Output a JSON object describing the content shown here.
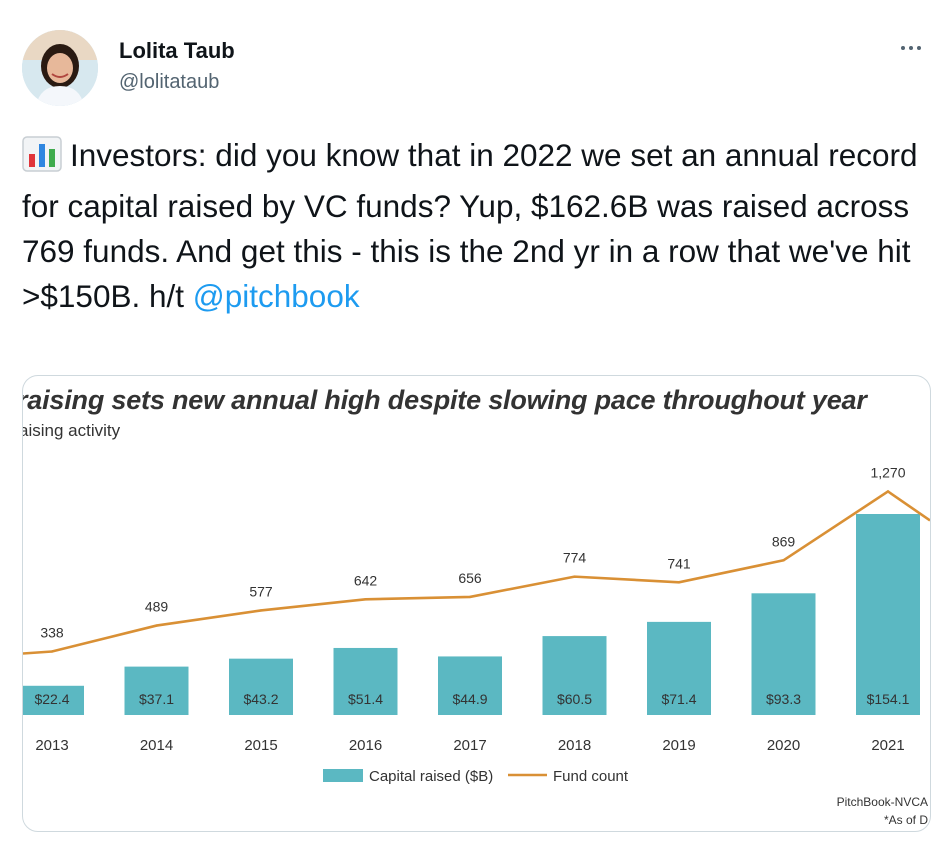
{
  "tweet": {
    "author_name": "Lolita Taub",
    "author_handle": "@lolitataub",
    "text_before_mention": "Investors: did you know that in 2022 we set an annual record for capital raised by VC funds? Yup, $162.6B was raised across 769 funds. And get this - this is the 2nd yr in a row that we've hit >$150B. h/t ",
    "mention": "@pitchbook",
    "emoji_icon": "bar-chart-icon",
    "more_icon": "more-horizontal-icon"
  },
  "chart_data": {
    "type": "bar",
    "title": "raising sets new annual high despite slowing pace throughout year",
    "subtitle": "aising activity",
    "categories": [
      "2013",
      "2014",
      "2015",
      "2016",
      "2017",
      "2018",
      "2019",
      "2020",
      "2021"
    ],
    "series": [
      {
        "name": "Capital raised ($B)",
        "type": "bar",
        "values": [
          22.4,
          37.1,
          43.2,
          51.4,
          44.9,
          60.5,
          71.4,
          93.3,
          154.1
        ],
        "labels": [
          "$22.4",
          "$37.1",
          "$43.2",
          "$51.4",
          "$44.9",
          "$60.5",
          "$71.4",
          "$93.3",
          "$154.1"
        ]
      },
      {
        "name": "Fund count",
        "type": "line",
        "values": [
          338,
          489,
          577,
          642,
          656,
          774,
          741,
          869,
          1270
        ],
        "labels": [
          "338",
          "489",
          "577",
          "642",
          "656",
          "774",
          "741",
          "869",
          "1,270"
        ]
      }
    ],
    "legend_position": "bottom",
    "source": "PitchBook-NVCA",
    "footnote": "*As of D",
    "colors": {
      "bar": "#5bb8c2",
      "line": "#d99035",
      "text": "#333333"
    }
  }
}
